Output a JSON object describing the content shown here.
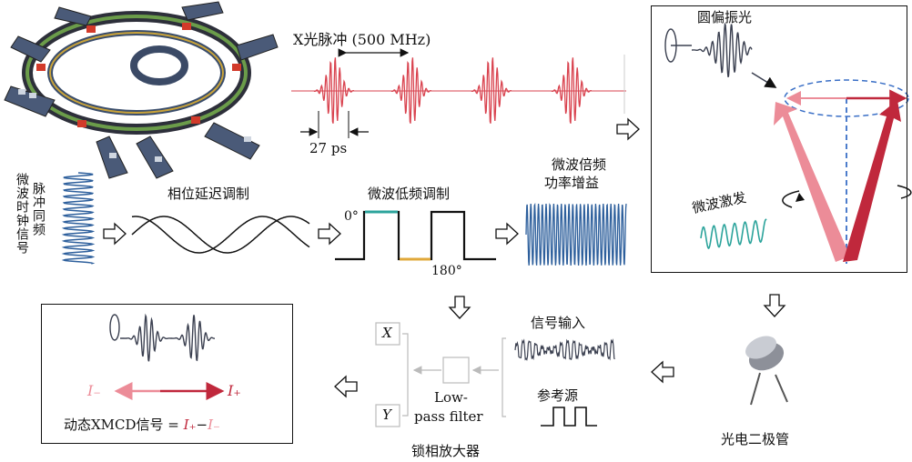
{
  "xray": {
    "title": "X光脉冲 (500 MHz)",
    "width_label": "27 ps"
  },
  "clock": {
    "label_line1": "脉冲同频",
    "label_line2": "微波时钟信号"
  },
  "phase_delay": {
    "label": "相位延迟调制"
  },
  "low_freq": {
    "label": "微波低频调制",
    "angle_top": "0°",
    "angle_bottom": "180°"
  },
  "multiplier": {
    "label_line1": "微波倍频",
    "label_line2": "功率增益"
  },
  "sample": {
    "circ_pol": "圆偏振光",
    "microwave_excite": "微波激发"
  },
  "photodiode": {
    "label": "光电二极管"
  },
  "lockin": {
    "signal_input": "信号输入",
    "reference": "参考源",
    "filter_line1": "Low-",
    "filter_line2": "pass filter",
    "title": "锁相放大器",
    "out_x": "X",
    "out_y": "Y"
  },
  "result": {
    "i_minus": "I₋",
    "i_plus": "I₊",
    "formula_prefix": "动态XMCD信号 = ",
    "formula_iplus": "I₊",
    "formula_minus": "−",
    "formula_iminus": "I₋"
  },
  "colors": {
    "pulse_red": "#d9434f",
    "dark_red": "#c0283c",
    "pink": "#ec8c98",
    "blue_wave": "#2d5f9c",
    "dashed_blue": "#3a6fc6",
    "teal": "#2ba39b",
    "orange": "#e0a83a"
  }
}
